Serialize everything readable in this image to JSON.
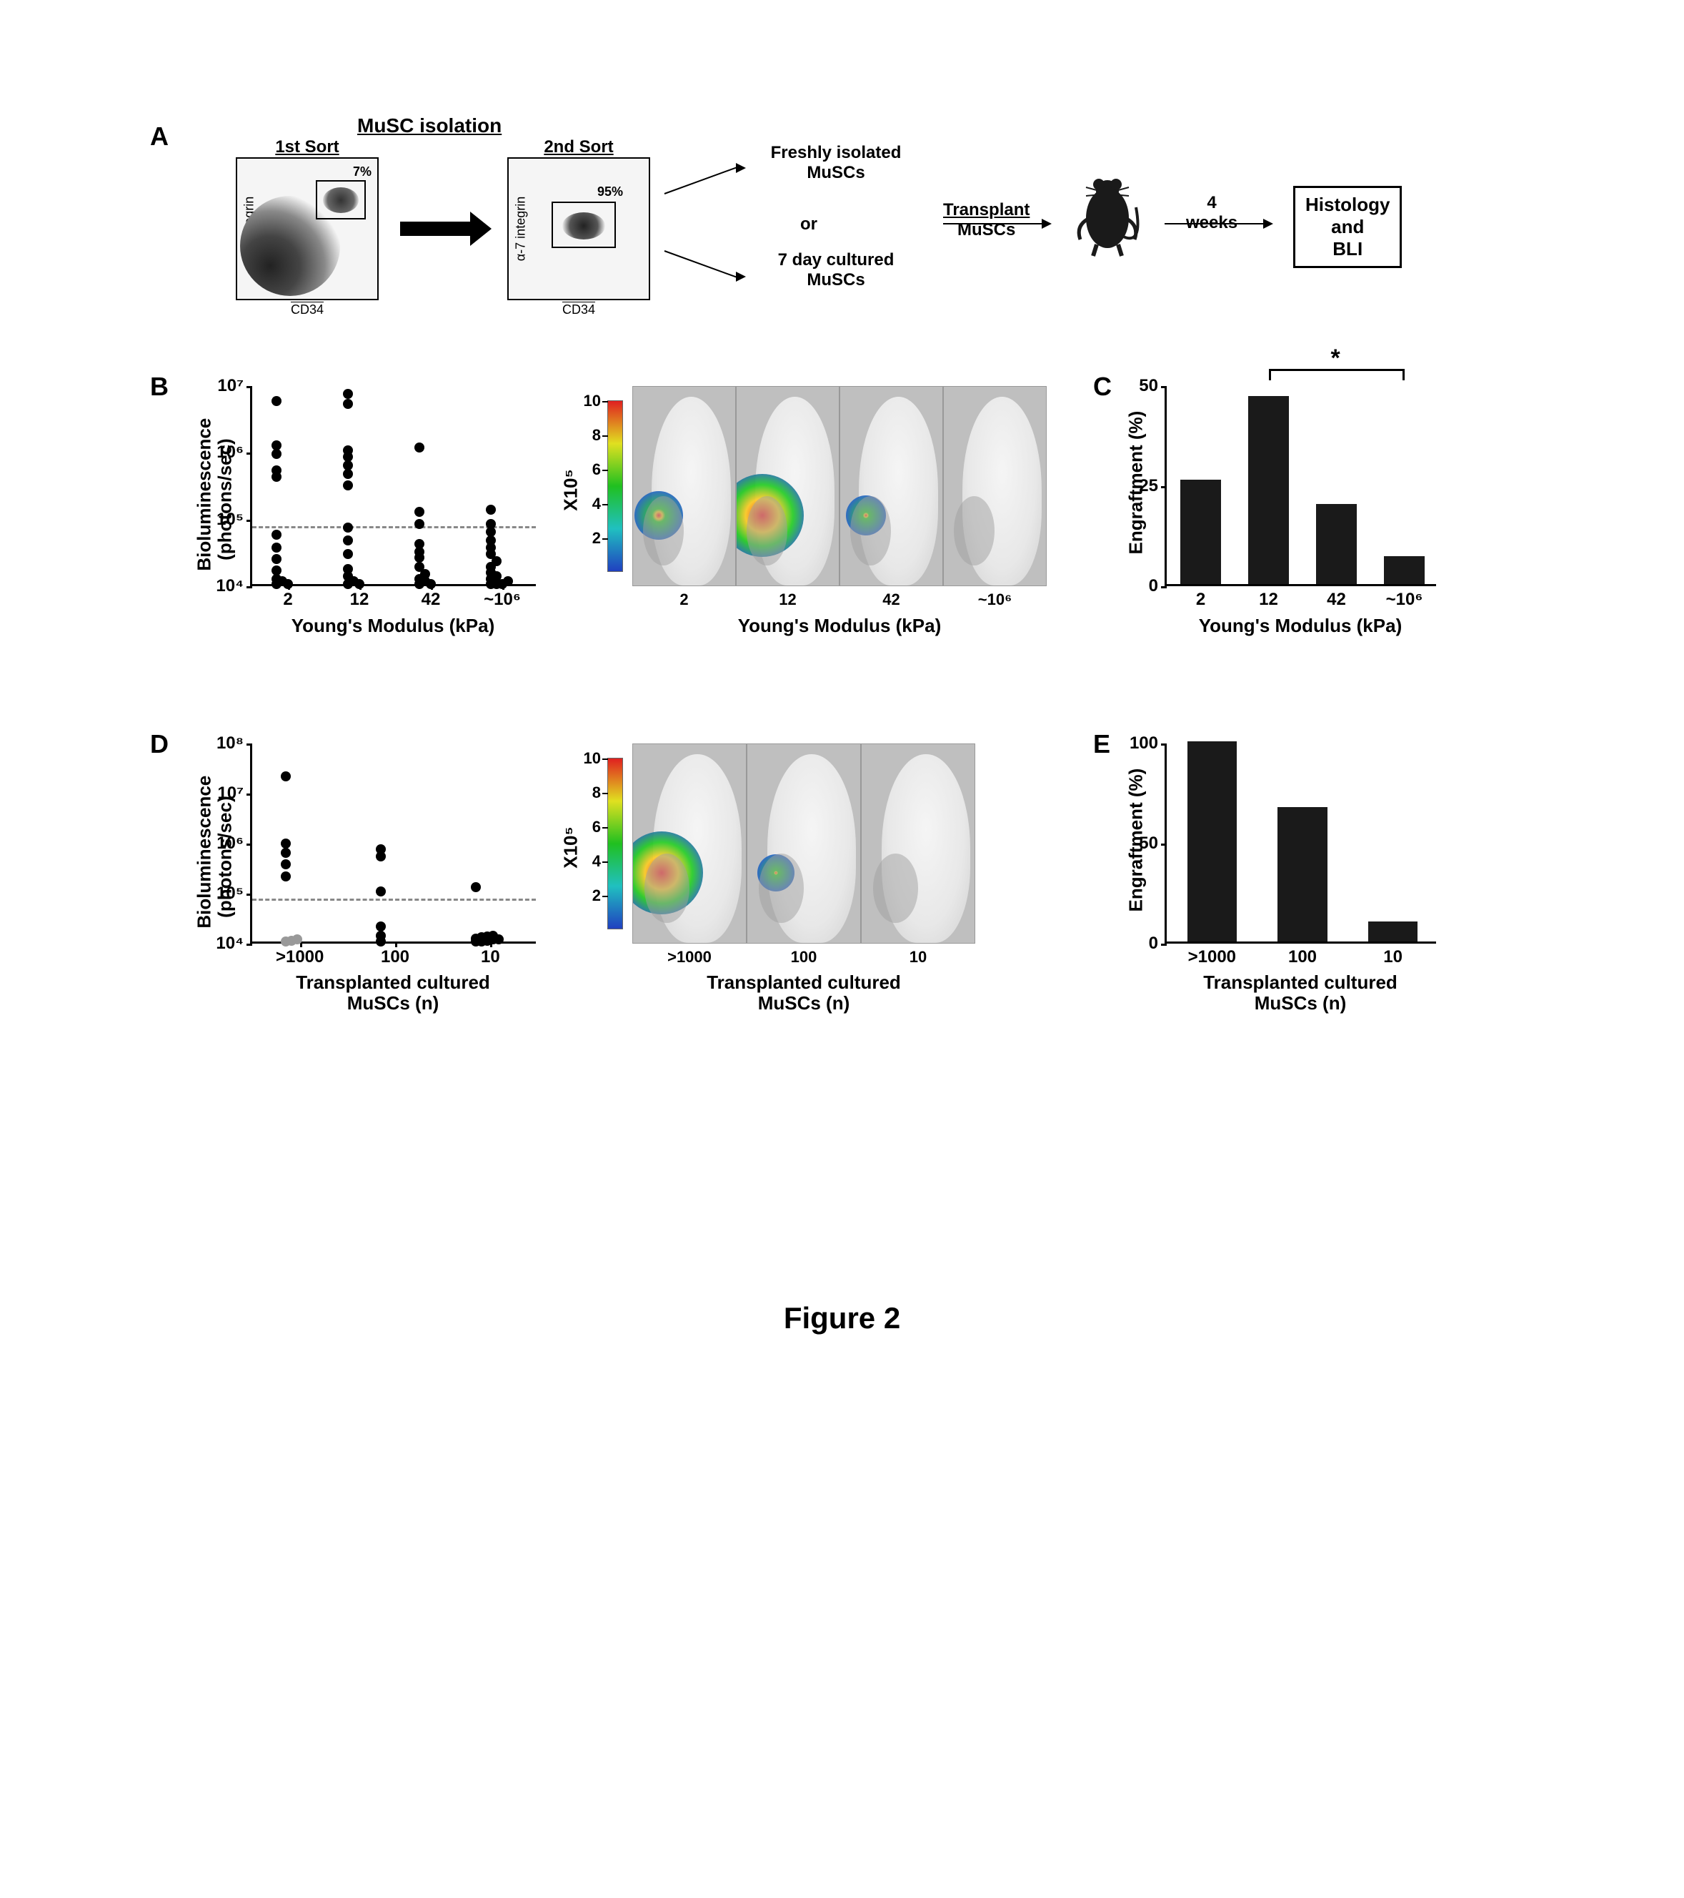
{
  "figure_caption": "Figure 2",
  "panelA": {
    "label": "A",
    "isolation_title": "MuSC isolation",
    "sort1": {
      "label": "1st Sort",
      "pct": "7%",
      "ylab": "α-7 integrin",
      "xlab": "CD34"
    },
    "sort2": {
      "label": "2nd Sort",
      "pct": "95%",
      "ylab": "α-7 integrin",
      "xlab": "CD34"
    },
    "option1a": "Freshly isolated",
    "option1b": "MuSCs",
    "option_or": "or",
    "option2a": "7 day cultured",
    "option2b": "MuSCs",
    "transplant_top": "Transplant",
    "transplant_bot": "MuSCs",
    "weeks_top": "4",
    "weeks_bot": "weeks",
    "result_top": "Histology",
    "result_mid": "and",
    "result_bot": "BLI"
  },
  "panelB": {
    "label": "B",
    "ylab": "Bioluminescence\n(photons/sec)",
    "xlab": "Young's Modulus  (kPa)",
    "yaxis": {
      "type": "log",
      "min": 10000.0,
      "max": 10000000.0,
      "ticks": [
        10000.0,
        100000.0,
        1000000.0,
        10000000.0
      ],
      "tick_labels": [
        "10⁴",
        "10⁵",
        "10⁶",
        "10⁷"
      ]
    },
    "categories": [
      "2",
      "12",
      "42",
      "~10⁶"
    ],
    "threshold": 80000.0,
    "point_color": "#000000",
    "background": "#ffffff",
    "axis_color": "#000000",
    "points": [
      {
        "cat": 0,
        "y": 10000.0
      },
      {
        "cat": 0,
        "y": 11000.0
      },
      {
        "cat": 0,
        "y": 12000.0
      },
      {
        "cat": 0,
        "y": 10000.0
      },
      {
        "cat": 0,
        "y": 16000.0
      },
      {
        "cat": 0,
        "y": 24000.0
      },
      {
        "cat": 0,
        "y": 35000.0
      },
      {
        "cat": 0,
        "y": 55000.0
      },
      {
        "cat": 0,
        "y": 400000.0
      },
      {
        "cat": 0,
        "y": 500000.0
      },
      {
        "cat": 0,
        "y": 900000.0
      },
      {
        "cat": 0,
        "y": 1200000.0
      },
      {
        "cat": 0,
        "y": 5500000.0
      },
      {
        "cat": 1,
        "y": 10000.0
      },
      {
        "cat": 1,
        "y": 11000.0
      },
      {
        "cat": 1,
        "y": 13000.0
      },
      {
        "cat": 1,
        "y": 10000.0
      },
      {
        "cat": 1,
        "y": 17000.0
      },
      {
        "cat": 1,
        "y": 28000.0
      },
      {
        "cat": 1,
        "y": 45000.0
      },
      {
        "cat": 1,
        "y": 70000.0
      },
      {
        "cat": 1,
        "y": 300000.0
      },
      {
        "cat": 1,
        "y": 450000.0
      },
      {
        "cat": 1,
        "y": 600000.0
      },
      {
        "cat": 1,
        "y": 800000.0
      },
      {
        "cat": 1,
        "y": 1000000.0
      },
      {
        "cat": 1,
        "y": 5000000.0
      },
      {
        "cat": 1,
        "y": 7000000.0
      },
      {
        "cat": 2,
        "y": 10000.0
      },
      {
        "cat": 2,
        "y": 11000.0
      },
      {
        "cat": 2,
        "y": 12000.0
      },
      {
        "cat": 2,
        "y": 10000.0
      },
      {
        "cat": 2,
        "y": 14000.0
      },
      {
        "cat": 2,
        "y": 18000.0
      },
      {
        "cat": 2,
        "y": 25000.0
      },
      {
        "cat": 2,
        "y": 30000.0
      },
      {
        "cat": 2,
        "y": 40000.0
      },
      {
        "cat": 2,
        "y": 80000.0
      },
      {
        "cat": 2,
        "y": 120000.0
      },
      {
        "cat": 2,
        "y": 1100000.0
      },
      {
        "cat": 3,
        "y": 10000.0
      },
      {
        "cat": 3,
        "y": 10000.0
      },
      {
        "cat": 3,
        "y": 10000.0
      },
      {
        "cat": 3,
        "y": 11000.0
      },
      {
        "cat": 3,
        "y": 12000.0
      },
      {
        "cat": 3,
        "y": 13000.0
      },
      {
        "cat": 3,
        "y": 15000.0
      },
      {
        "cat": 3,
        "y": 18000.0
      },
      {
        "cat": 3,
        "y": 22000.0
      },
      {
        "cat": 3,
        "y": 28000.0
      },
      {
        "cat": 3,
        "y": 35000.0
      },
      {
        "cat": 3,
        "y": 45000.0
      },
      {
        "cat": 3,
        "y": 60000.0
      },
      {
        "cat": 3,
        "y": 80000.0
      },
      {
        "cat": 3,
        "y": 130000.0
      }
    ]
  },
  "panelB_images": {
    "xlab": "Young's Modulus  (kPa)",
    "categories": [
      "2",
      "12",
      "42",
      "~10⁶"
    ],
    "scale": {
      "mult": "X10⁵",
      "ticks": [
        2,
        4,
        6,
        8,
        10
      ]
    },
    "signals": [
      {
        "intensity": 0.35
      },
      {
        "intensity": 0.95
      },
      {
        "intensity": 0.2
      },
      {
        "intensity": 0.0
      }
    ]
  },
  "panelC": {
    "label": "C",
    "ylab": "Engraftment (%)",
    "xlab": "Young's Modulus (kPa)",
    "yaxis": {
      "min": 0,
      "max": 50,
      "ticks": [
        0,
        25,
        50
      ]
    },
    "categories": [
      "2",
      "12",
      "42",
      "~10⁶"
    ],
    "values": [
      26,
      47,
      20,
      7
    ],
    "bar_color": "#1a1a1a",
    "sig": {
      "from": 1,
      "to": 3,
      "label": "*"
    }
  },
  "panelD": {
    "label": "D",
    "ylab": "Bioluminescence\n(photons/sec)",
    "xlab_top": "Transplanted cultured",
    "xlab_bot": "MuSCs (n)",
    "yaxis": {
      "type": "log",
      "min": 10000.0,
      "max": 100000000.0,
      "ticks": [
        10000.0,
        100000.0,
        1000000.0,
        10000000.0,
        100000000.0
      ],
      "tick_labels": [
        "10⁴",
        "10⁵",
        "10⁶",
        "10⁷",
        "10⁸"
      ]
    },
    "categories": [
      ">1000",
      "100",
      "10"
    ],
    "threshold": 80000.0,
    "point_color": "#000000",
    "gray_point_color": "#999999",
    "points": [
      {
        "cat": 0,
        "y": 10000.0,
        "c": "g"
      },
      {
        "cat": 0,
        "y": 10500.0,
        "c": "g"
      },
      {
        "cat": 0,
        "y": 11000.0,
        "c": "g"
      },
      {
        "cat": 0,
        "y": 200000.0,
        "c": "k"
      },
      {
        "cat": 0,
        "y": 350000.0,
        "c": "k"
      },
      {
        "cat": 0,
        "y": 600000.0,
        "c": "k"
      },
      {
        "cat": 0,
        "y": 900000.0,
        "c": "k"
      },
      {
        "cat": 0,
        "y": 20000000.0,
        "c": "k"
      },
      {
        "cat": 1,
        "y": 10000.0,
        "c": "k"
      },
      {
        "cat": 1,
        "y": 13000.0,
        "c": "k"
      },
      {
        "cat": 1,
        "y": 20000.0,
        "c": "k"
      },
      {
        "cat": 1,
        "y": 500000.0,
        "c": "k"
      },
      {
        "cat": 1,
        "y": 700000.0,
        "c": "k"
      },
      {
        "cat": 1,
        "y": 100000.0,
        "c": "k"
      },
      {
        "cat": 2,
        "y": 10000.0,
        "c": "k"
      },
      {
        "cat": 2,
        "y": 10000.0,
        "c": "k"
      },
      {
        "cat": 2,
        "y": 10500.0,
        "c": "k"
      },
      {
        "cat": 2,
        "y": 11000.0,
        "c": "k"
      },
      {
        "cat": 2,
        "y": 11000.0,
        "c": "k"
      },
      {
        "cat": 2,
        "y": 11500.0,
        "c": "k"
      },
      {
        "cat": 2,
        "y": 12000.0,
        "c": "k"
      },
      {
        "cat": 2,
        "y": 12500.0,
        "c": "k"
      },
      {
        "cat": 2,
        "y": 13000.0,
        "c": "k"
      },
      {
        "cat": 2,
        "y": 120000.0,
        "c": "k"
      }
    ]
  },
  "panelD_images": {
    "xlab_top": "Transplanted cultured",
    "xlab_bot": "MuSCs (n)",
    "categories": [
      ">1000",
      "100",
      "10"
    ],
    "scale": {
      "mult": "X10⁵",
      "ticks": [
        2,
        4,
        6,
        8,
        10
      ]
    },
    "signals": [
      {
        "intensity": 0.95
      },
      {
        "intensity": 0.15
      },
      {
        "intensity": 0.0
      }
    ]
  },
  "panelE": {
    "label": "E",
    "ylab": "Engraftment (%)",
    "xlab_top": "Transplanted cultured",
    "xlab_bot": "MuSCs (n)",
    "yaxis": {
      "min": 0,
      "max": 100,
      "ticks": [
        0,
        50,
        100
      ]
    },
    "categories": [
      ">1000",
      "100",
      "10"
    ],
    "values": [
      100,
      67,
      10
    ],
    "bar_color": "#1a1a1a"
  },
  "colors": {
    "axis": "#000000",
    "threshold": "#888888",
    "mouse_bg": "#bfbfbf"
  }
}
